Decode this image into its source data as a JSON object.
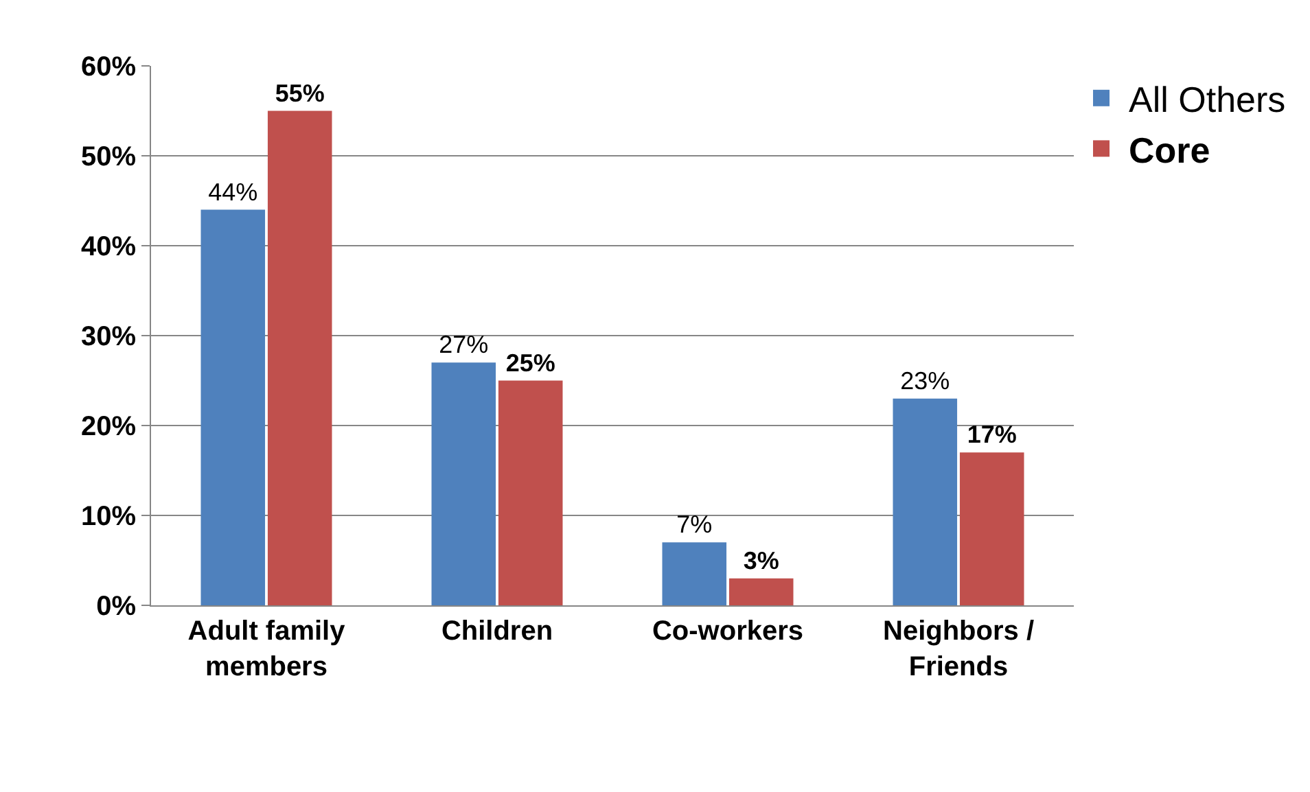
{
  "chart_data": {
    "type": "bar",
    "categories": [
      "Adult family\nmembers",
      "Children",
      "Co-workers",
      "Neighbors /\nFriends"
    ],
    "series": [
      {
        "name": "All Others",
        "color": "#4f81bd",
        "values": [
          44,
          27,
          7,
          23
        ],
        "value_labels": [
          "44%",
          "27%",
          "7%",
          "23%"
        ]
      },
      {
        "name": "Core",
        "color": "#c0504d",
        "values": [
          55,
          25,
          3,
          17
        ],
        "value_labels": [
          "55%",
          "25%",
          "3%",
          "17%"
        ]
      }
    ],
    "ylim": [
      0,
      60
    ],
    "yticks": [
      {
        "value": 0,
        "label": "0%"
      },
      {
        "value": 10,
        "label": "10%"
      },
      {
        "value": 20,
        "label": "20%"
      },
      {
        "value": 30,
        "label": "30%"
      },
      {
        "value": 40,
        "label": "40%"
      },
      {
        "value": 50,
        "label": "50%"
      },
      {
        "value": 60,
        "label": "60%"
      }
    ],
    "grid": "y",
    "legend": "top right"
  }
}
